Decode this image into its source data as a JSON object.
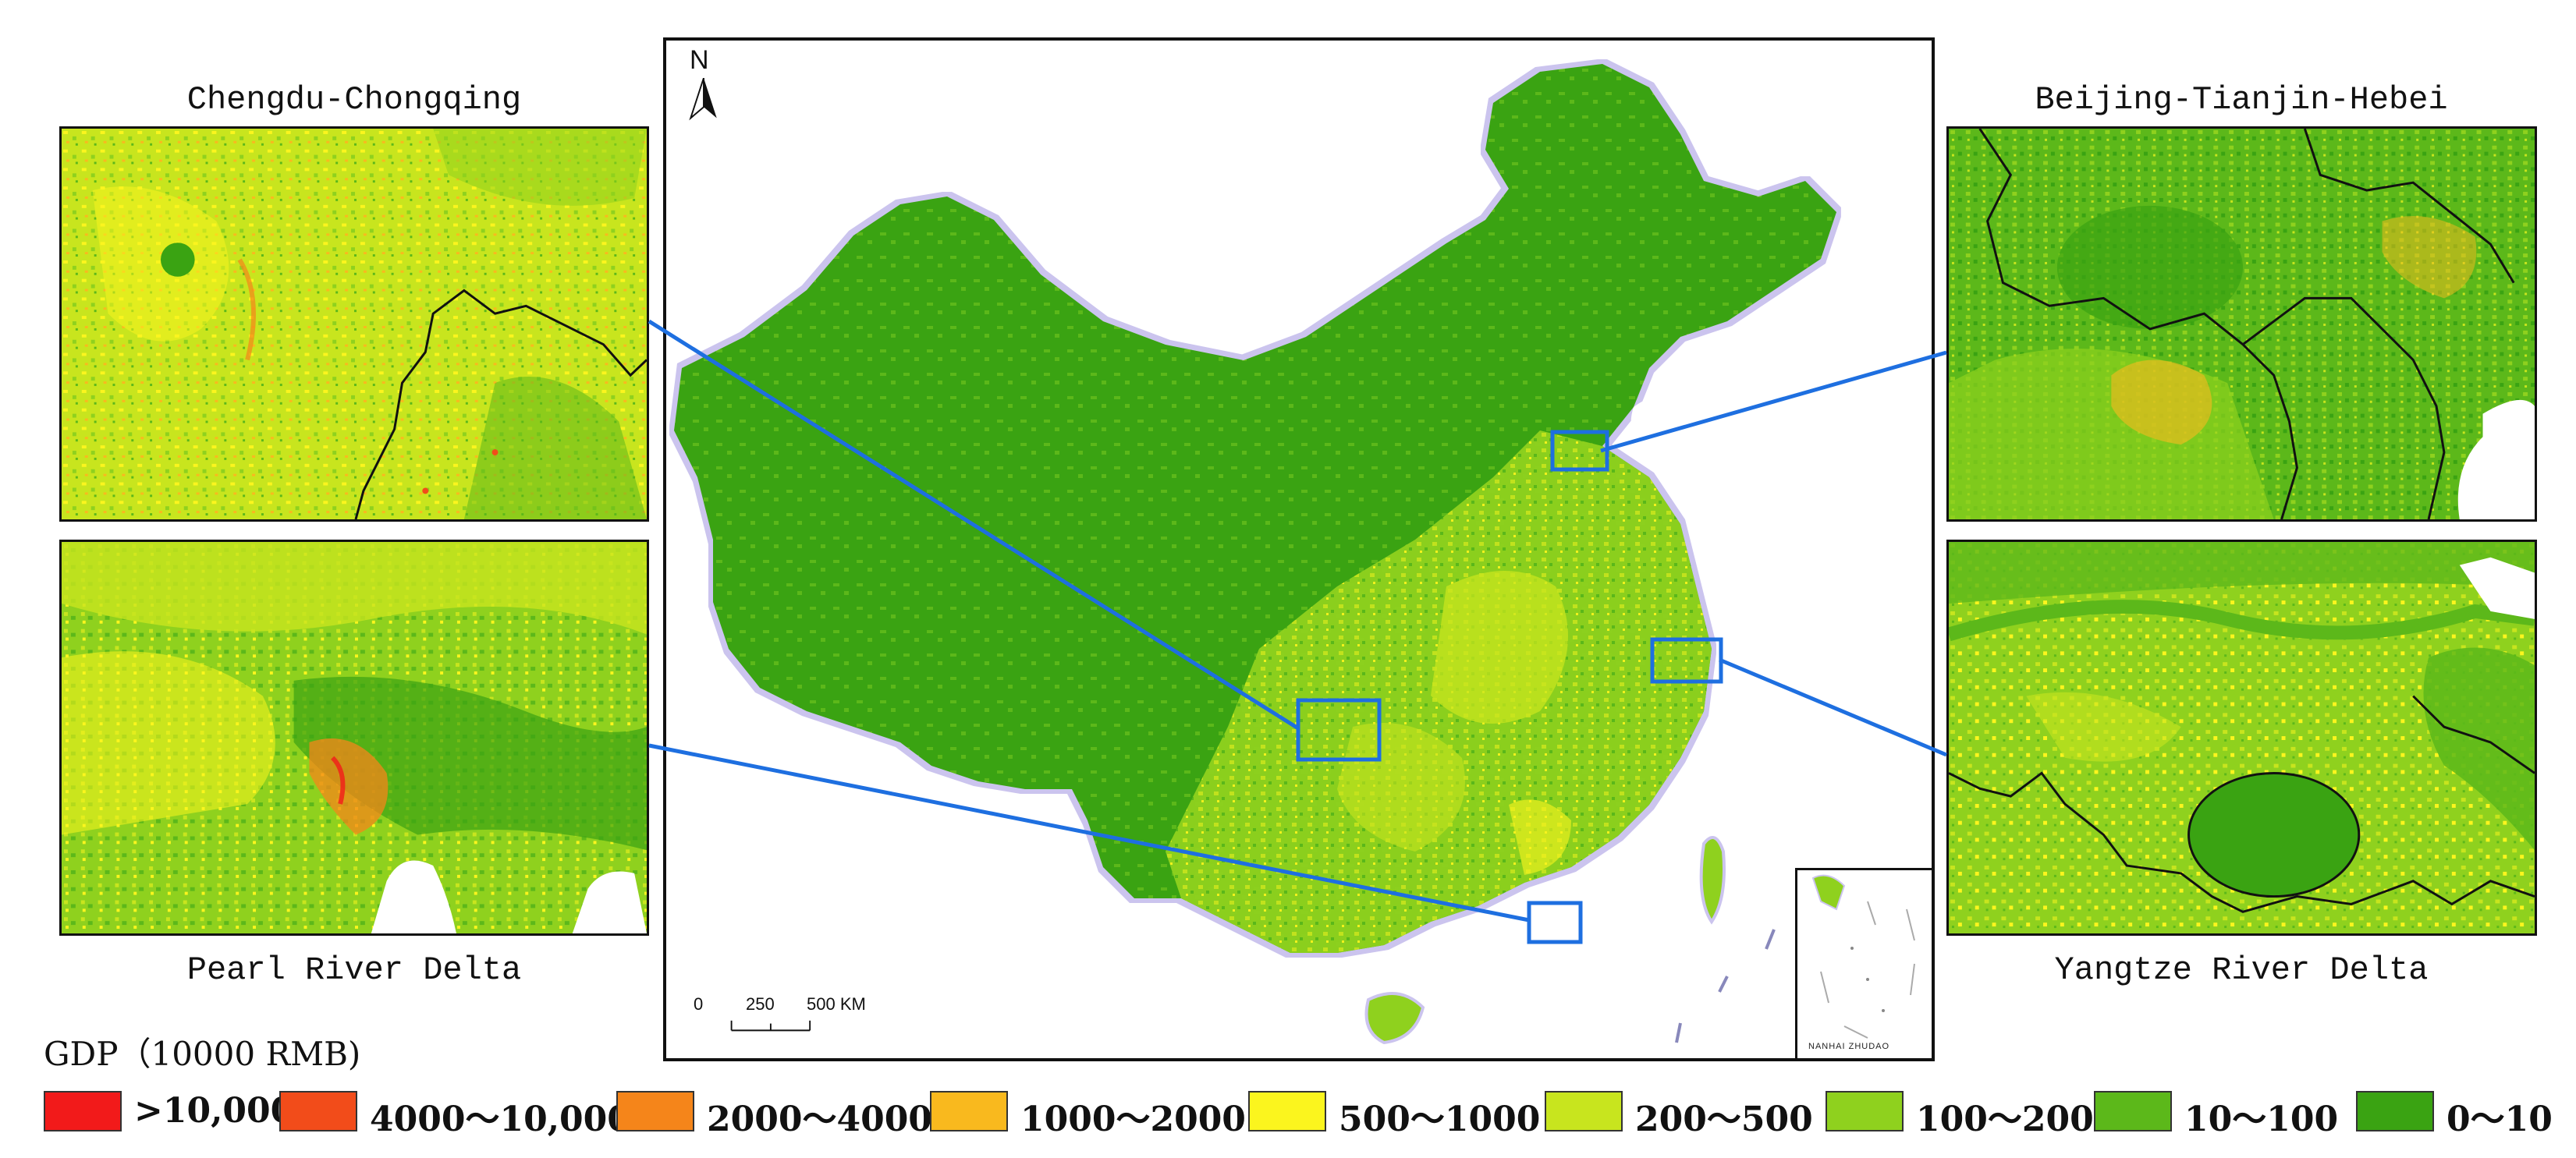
{
  "insets": {
    "top_left": {
      "title": "Chengdu-Chongqing"
    },
    "bottom_left": {
      "title": "Pearl River Delta"
    },
    "top_right": {
      "title": "Beijing-Tianjin-Hebei"
    },
    "bottom_right": {
      "title": "Yangtze River Delta"
    }
  },
  "map": {
    "north_label": "N",
    "scale": {
      "tick0": "0",
      "tick1": "250",
      "tick2": "500 KM"
    },
    "nanhai_label": "NANHAI ZHUDAO"
  },
  "legend": {
    "title": "GDP（10000 RMB)",
    "items": [
      {
        "label": ">10,000",
        "color": "#f21a1a"
      },
      {
        "label": "4000～10,000",
        "color": "#f24c1a"
      },
      {
        "label": "2000～4000",
        "color": "#f5851a"
      },
      {
        "label": "1000～2000",
        "color": "#f9b91e"
      },
      {
        "label": "500～1000",
        "color": "#fbf51e"
      },
      {
        "label": "200～500",
        "color": "#c8e51e"
      },
      {
        "label": "100～200",
        "color": "#8fd11e"
      },
      {
        "label": "10～100",
        "color": "#5cb81a"
      },
      {
        "label": "0～10",
        "color": "#3aa312"
      }
    ]
  }
}
